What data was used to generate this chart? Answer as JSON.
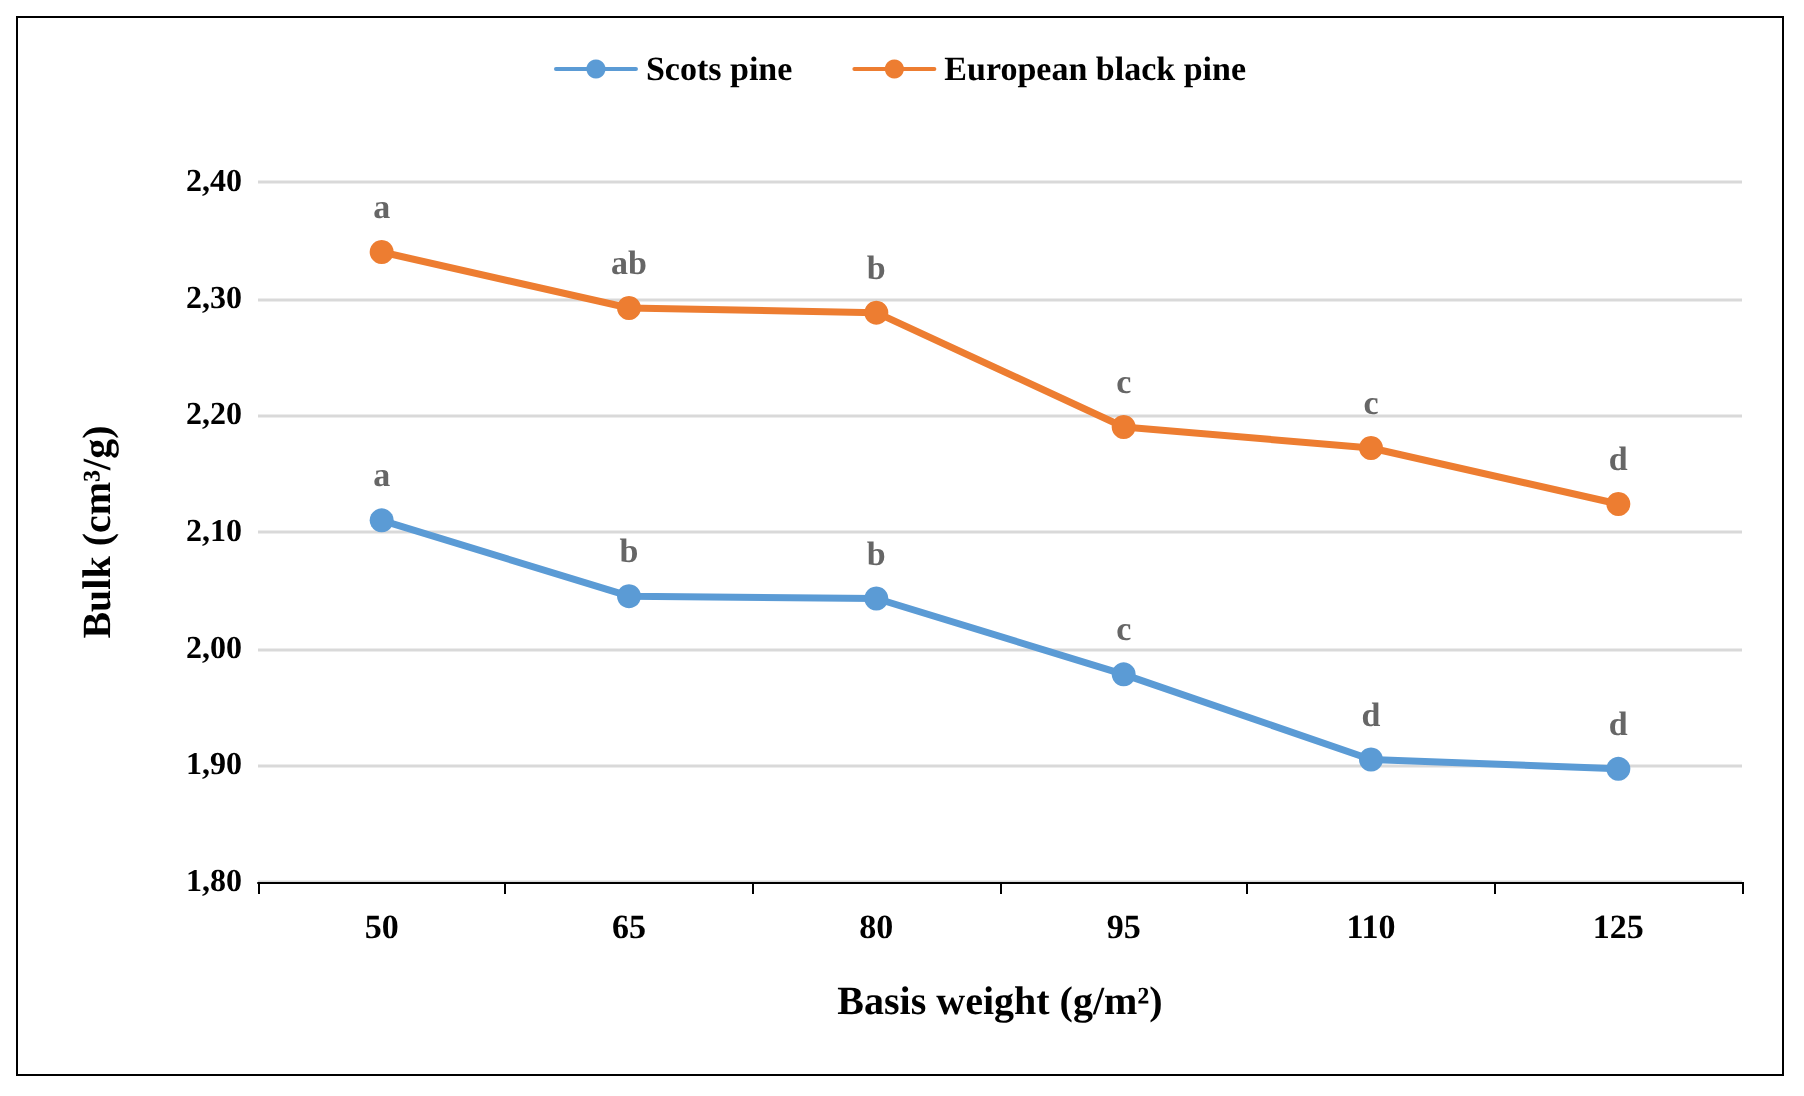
{
  "chart_data": {
    "type": "line",
    "xlabel": "Basis weight (g/m²)",
    "ylabel": "Bulk (cm³/g)",
    "categories": [
      "50",
      "65",
      "80",
      "95",
      "110",
      "125"
    ],
    "series": [
      {
        "name": "Scots pine",
        "color": "#5b9bd5",
        "values": [
          2.11,
          2.045,
          2.043,
          1.978,
          1.905,
          1.897
        ]
      },
      {
        "name": "European black pine",
        "color": "#ed7d31",
        "values": [
          2.34,
          2.292,
          2.288,
          2.19,
          2.172,
          2.124
        ]
      }
    ],
    "ylim": [
      1.8,
      2.4
    ],
    "yticks": [
      {
        "value": 1.8,
        "label": "1,80"
      },
      {
        "value": 1.9,
        "label": "1,90"
      },
      {
        "value": 2.0,
        "label": "2,00"
      },
      {
        "value": 2.1,
        "label": "2,10"
      },
      {
        "value": 2.2,
        "label": "2,20"
      },
      {
        "value": 2.3,
        "label": "2,30"
      },
      {
        "value": 2.4,
        "label": "2,40"
      }
    ],
    "grid": "y",
    "legend": "top",
    "marker": "circle",
    "line_style": "solid",
    "annotations": [
      {
        "text": "a",
        "x": "50",
        "y": 2.11
      },
      {
        "text": "b",
        "x": "65",
        "y": 2.045
      },
      {
        "text": "b",
        "x": "80",
        "y": 2.043
      },
      {
        "text": "c",
        "x": "95",
        "y": 1.978
      },
      {
        "text": "d",
        "x": "110",
        "y": 1.905
      },
      {
        "text": "d",
        "x": "125",
        "y": 1.897
      },
      {
        "text": "a",
        "x": "50",
        "y": 2.34
      },
      {
        "text": "ab",
        "x": "65",
        "y": 2.292
      },
      {
        "text": "b",
        "x": "80",
        "y": 2.288
      },
      {
        "text": "c",
        "x": "95",
        "y": 2.19
      },
      {
        "text": "c",
        "x": "110",
        "y": 2.172
      },
      {
        "text": "d",
        "x": "125",
        "y": 2.124
      }
    ]
  }
}
